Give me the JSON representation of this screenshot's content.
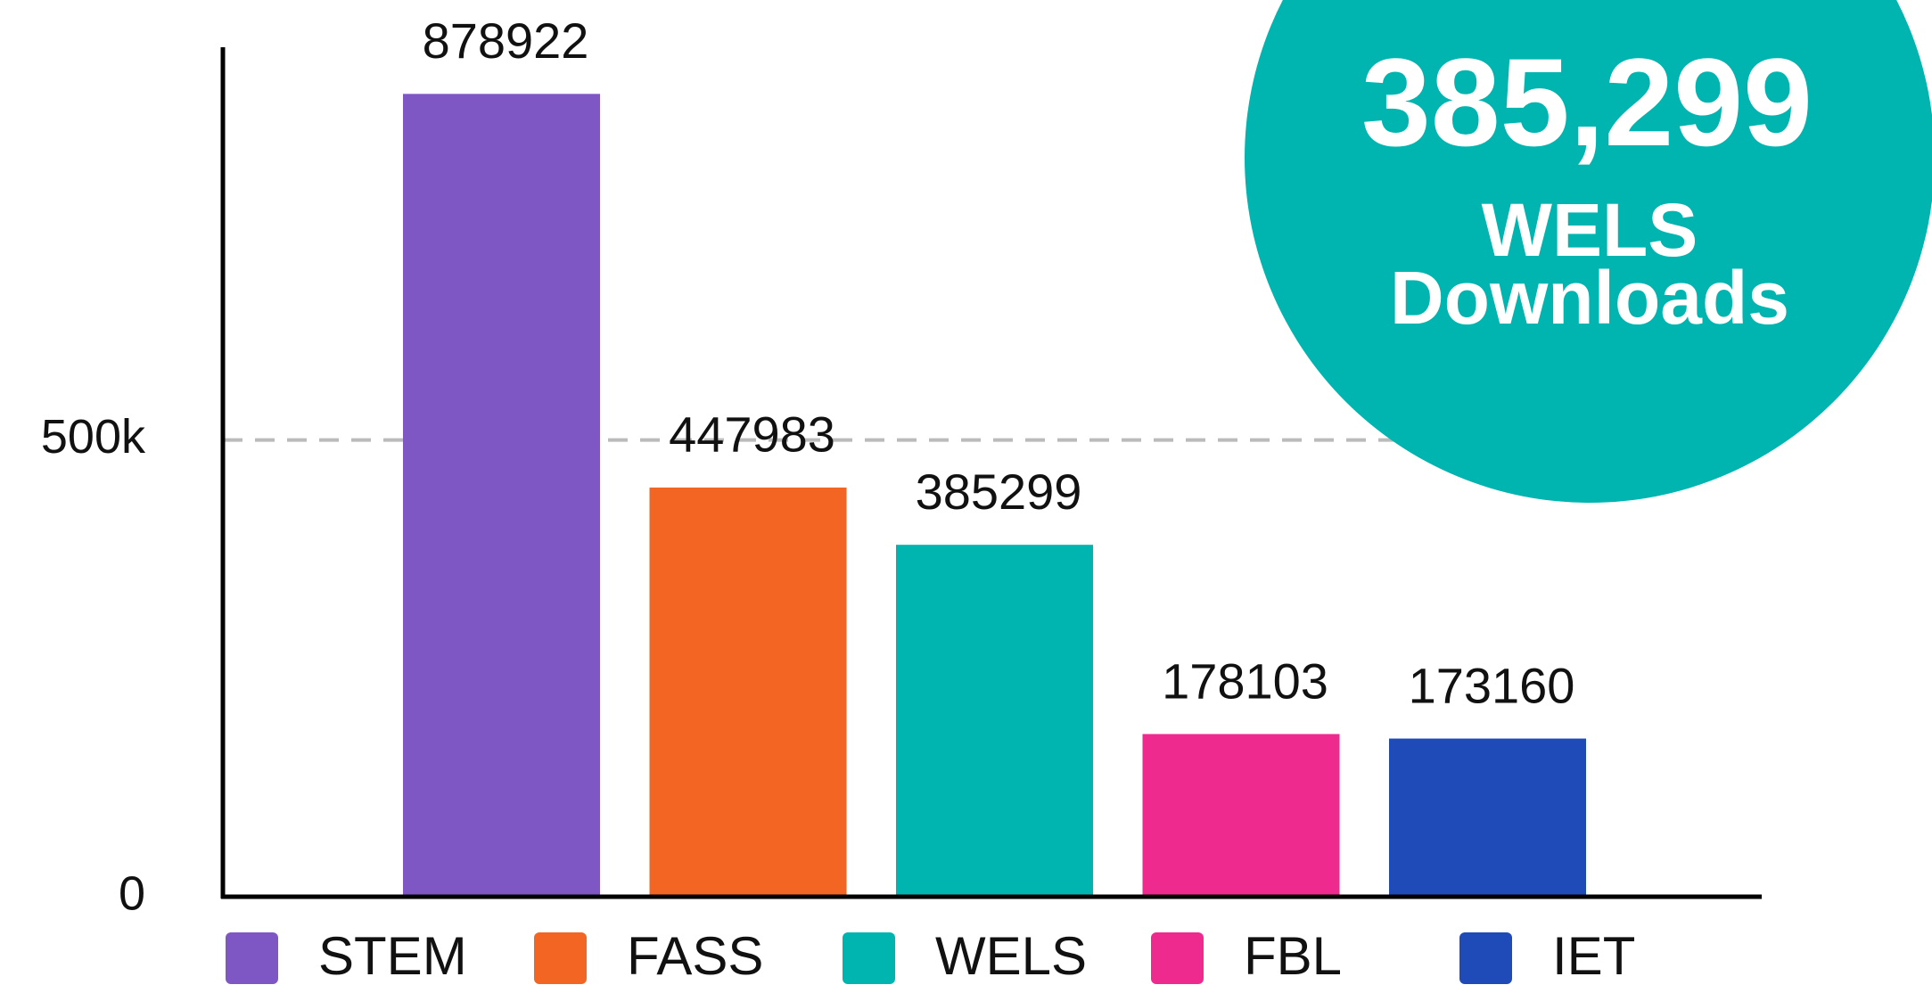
{
  "chart_data": {
    "type": "bar",
    "categories": [
      "STEM",
      "FASS",
      "WELS",
      "FBL",
      "IET"
    ],
    "values": [
      878922,
      447983,
      385299,
      178103,
      173160
    ],
    "colors": [
      "#7e57c5",
      "#f26522",
      "#00b5b0",
      "#ee2a8f",
      "#1f4bb9"
    ],
    "ylim": [
      0,
      930000
    ],
    "yticks": [
      0,
      {
        "value": 500000,
        "label": "500k"
      }
    ],
    "grid": true,
    "legend": "bottom",
    "callout": {
      "number": "385,299",
      "lines": [
        "WELS",
        "Downloads"
      ],
      "color": "#00b5b0"
    }
  }
}
